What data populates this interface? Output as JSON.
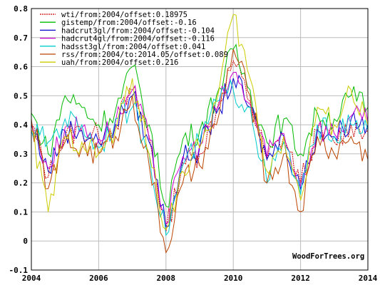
{
  "chart_data": {
    "type": "line",
    "title": "",
    "xlabel": "",
    "ylabel": "",
    "xlim": [
      2004,
      2014
    ],
    "ylim": [
      -0.1,
      0.8
    ],
    "x_ticks": [
      "2004",
      "2006",
      "2008",
      "2010",
      "2012",
      "2014"
    ],
    "y_ticks": [
      "-0.1",
      "0",
      "0.1",
      "0.2",
      "0.3",
      "0.4",
      "0.5",
      "0.6",
      "0.7",
      "0.8"
    ],
    "grid": true,
    "legend_position": "top-left",
    "credit": "WoodForTrees.org",
    "series": [
      {
        "name": "wti/from:2004/offset:0.18975",
        "color": "#cc0000",
        "dash": true,
        "x": [
          2004.0,
          2004.5,
          2005.0,
          2005.5,
          2006.0,
          2006.5,
          2007.0,
          2007.5,
          2008.0,
          2008.5,
          2009.0,
          2009.5,
          2010.0,
          2010.5,
          2011.0,
          2011.5,
          2012.0,
          2012.5,
          2013.0,
          2013.5,
          2014.0
        ],
        "values": [
          0.4,
          0.22,
          0.36,
          0.38,
          0.36,
          0.4,
          0.52,
          0.36,
          0.03,
          0.27,
          0.3,
          0.45,
          0.62,
          0.48,
          0.28,
          0.36,
          0.2,
          0.38,
          0.34,
          0.4,
          0.38
        ]
      },
      {
        "name": "gistemp/from:2004/offset:-0.16",
        "color": "#00bb00",
        "dash": false,
        "x": [
          2004.0,
          2004.5,
          2005.0,
          2005.5,
          2006.0,
          2006.5,
          2007.0,
          2007.5,
          2008.0,
          2008.5,
          2009.0,
          2009.5,
          2010.0,
          2010.5,
          2011.0,
          2011.5,
          2012.0,
          2012.5,
          2013.0,
          2013.5,
          2014.0
        ],
        "values": [
          0.44,
          0.3,
          0.5,
          0.46,
          0.4,
          0.45,
          0.6,
          0.4,
          0.12,
          0.35,
          0.38,
          0.5,
          0.66,
          0.52,
          0.34,
          0.42,
          0.3,
          0.44,
          0.42,
          0.5,
          0.46
        ]
      },
      {
        "name": "hadcrut3gl/from:2004/offset:-0.104",
        "color": "#0000cc",
        "dash": false,
        "x": [
          2004.0,
          2004.5,
          2005.0,
          2005.5,
          2006.0,
          2006.5,
          2007.0,
          2007.5,
          2008.0,
          2008.5,
          2009.0,
          2009.5,
          2010.0,
          2010.5,
          2011.0,
          2011.5,
          2012.0,
          2012.5,
          2013.0,
          2013.5,
          2014.0
        ],
        "values": [
          0.4,
          0.24,
          0.38,
          0.38,
          0.34,
          0.4,
          0.5,
          0.34,
          0.05,
          0.28,
          0.32,
          0.44,
          0.56,
          0.46,
          0.28,
          0.36,
          0.18,
          0.38,
          0.36,
          0.42,
          0.4
        ]
      },
      {
        "name": "hadcrut4gl/from:2004/offset:-0.116",
        "color": "#cc00cc",
        "dash": false,
        "x": [
          2004.0,
          2004.5,
          2005.0,
          2005.5,
          2006.0,
          2006.5,
          2007.0,
          2007.5,
          2008.0,
          2008.5,
          2009.0,
          2009.5,
          2010.0,
          2010.5,
          2011.0,
          2011.5,
          2012.0,
          2012.5,
          2013.0,
          2013.5,
          2014.0
        ],
        "values": [
          0.41,
          0.25,
          0.39,
          0.39,
          0.35,
          0.41,
          0.52,
          0.35,
          0.06,
          0.29,
          0.33,
          0.45,
          0.58,
          0.47,
          0.29,
          0.37,
          0.19,
          0.39,
          0.37,
          0.43,
          0.41
        ]
      },
      {
        "name": "hadsst3gl/from:2004/offset:0.041",
        "color": "#00cccc",
        "dash": false,
        "x": [
          2004.0,
          2004.5,
          2005.0,
          2005.5,
          2006.0,
          2006.5,
          2007.0,
          2007.5,
          2008.0,
          2008.5,
          2009.0,
          2009.5,
          2010.0,
          2010.5,
          2011.0,
          2011.5,
          2012.0,
          2012.5,
          2013.0,
          2013.5,
          2014.0
        ],
        "values": [
          0.38,
          0.34,
          0.42,
          0.4,
          0.32,
          0.42,
          0.46,
          0.3,
          0.02,
          0.26,
          0.34,
          0.48,
          0.52,
          0.46,
          0.2,
          0.34,
          0.16,
          0.4,
          0.36,
          0.4,
          0.38
        ]
      },
      {
        "name": "rss/from:2004/to:2014.05/offset:0.089",
        "color": "#bb4400",
        "dash": false,
        "x": [
          2004.0,
          2004.5,
          2005.0,
          2005.5,
          2006.0,
          2006.5,
          2007.0,
          2007.5,
          2008.0,
          2008.5,
          2009.0,
          2009.5,
          2010.0,
          2010.5,
          2011.0,
          2011.5,
          2012.0,
          2012.5,
          2013.0,
          2013.5,
          2014.0
        ],
        "values": [
          0.42,
          0.18,
          0.34,
          0.32,
          0.3,
          0.36,
          0.5,
          0.26,
          -0.04,
          0.2,
          0.26,
          0.4,
          0.66,
          0.5,
          0.2,
          0.3,
          0.1,
          0.36,
          0.3,
          0.36,
          0.28
        ]
      },
      {
        "name": "uah/from:2004/offset:0.216",
        "color": "#cccc00",
        "dash": false,
        "x": [
          2004.0,
          2004.5,
          2005.0,
          2005.5,
          2006.0,
          2006.5,
          2007.0,
          2007.5,
          2008.0,
          2008.5,
          2009.0,
          2009.5,
          2010.0,
          2010.5,
          2011.0,
          2011.5,
          2012.0,
          2012.5,
          2013.0,
          2013.5,
          2014.0
        ],
        "values": [
          0.38,
          0.1,
          0.36,
          0.34,
          0.3,
          0.38,
          0.56,
          0.3,
          0.04,
          0.24,
          0.32,
          0.48,
          0.78,
          0.56,
          0.24,
          0.36,
          0.14,
          0.46,
          0.4,
          0.52,
          0.4
        ]
      }
    ]
  }
}
